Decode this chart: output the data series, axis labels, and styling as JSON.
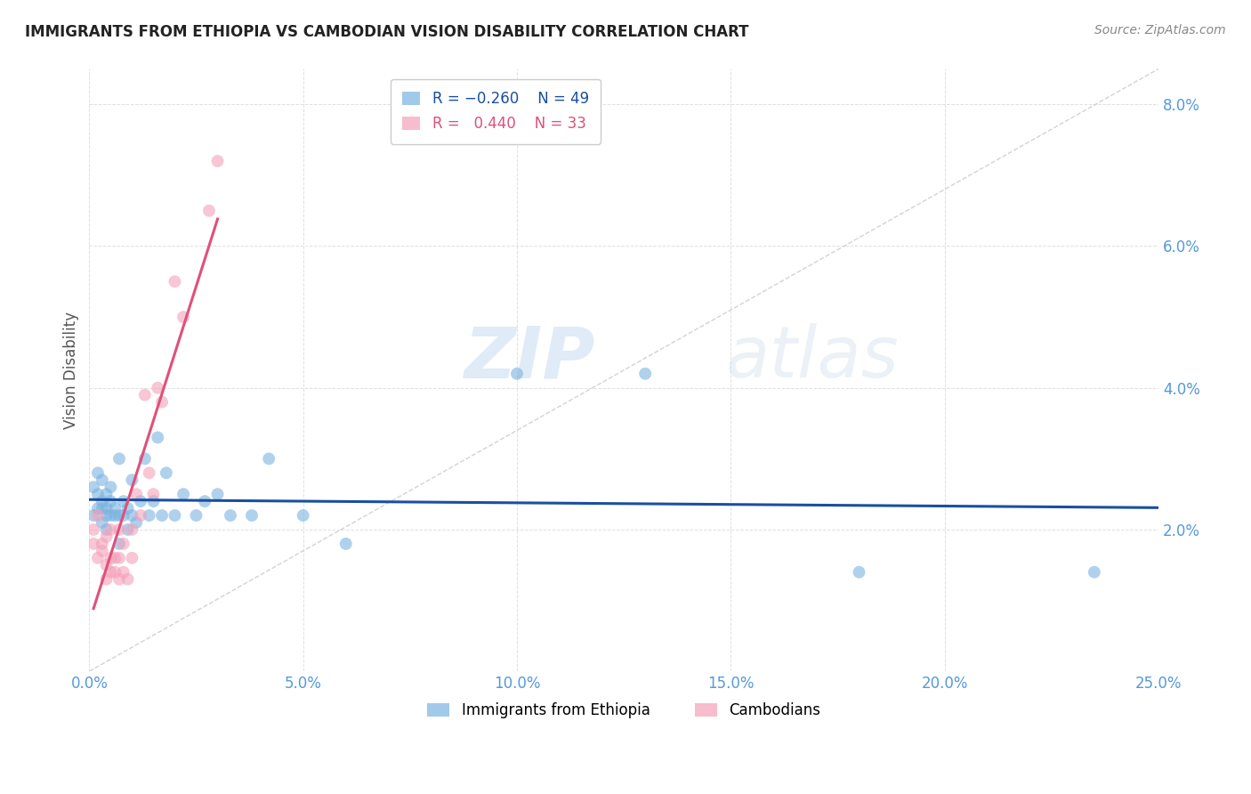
{
  "title": "IMMIGRANTS FROM ETHIOPIA VS CAMBODIAN VISION DISABILITY CORRELATION CHART",
  "source": "Source: ZipAtlas.com",
  "ylabel": "Vision Disability",
  "xlim": [
    0.0,
    0.25
  ],
  "ylim": [
    0.0,
    0.085
  ],
  "yticks": [
    0.02,
    0.04,
    0.06,
    0.08
  ],
  "xticks": [
    0.0,
    0.05,
    0.1,
    0.15,
    0.2,
    0.25
  ],
  "ethiopia_x": [
    0.001,
    0.001,
    0.002,
    0.002,
    0.002,
    0.003,
    0.003,
    0.003,
    0.003,
    0.004,
    0.004,
    0.004,
    0.004,
    0.005,
    0.005,
    0.005,
    0.006,
    0.006,
    0.007,
    0.007,
    0.007,
    0.008,
    0.008,
    0.009,
    0.009,
    0.01,
    0.01,
    0.011,
    0.012,
    0.013,
    0.014,
    0.015,
    0.016,
    0.017,
    0.018,
    0.02,
    0.022,
    0.025,
    0.027,
    0.03,
    0.033,
    0.038,
    0.042,
    0.05,
    0.06,
    0.1,
    0.13,
    0.18,
    0.235
  ],
  "ethiopia_y": [
    0.022,
    0.026,
    0.023,
    0.025,
    0.028,
    0.021,
    0.024,
    0.027,
    0.023,
    0.02,
    0.023,
    0.025,
    0.022,
    0.024,
    0.022,
    0.026,
    0.023,
    0.022,
    0.03,
    0.022,
    0.018,
    0.024,
    0.022,
    0.02,
    0.023,
    0.027,
    0.022,
    0.021,
    0.024,
    0.03,
    0.022,
    0.024,
    0.033,
    0.022,
    0.028,
    0.022,
    0.025,
    0.022,
    0.024,
    0.025,
    0.022,
    0.022,
    0.03,
    0.022,
    0.018,
    0.042,
    0.042,
    0.014,
    0.014
  ],
  "cambodian_x": [
    0.001,
    0.001,
    0.002,
    0.002,
    0.003,
    0.003,
    0.004,
    0.004,
    0.004,
    0.005,
    0.005,
    0.005,
    0.006,
    0.006,
    0.007,
    0.007,
    0.007,
    0.008,
    0.008,
    0.009,
    0.01,
    0.01,
    0.011,
    0.012,
    0.013,
    0.014,
    0.015,
    0.016,
    0.017,
    0.02,
    0.022,
    0.028,
    0.03
  ],
  "cambodian_y": [
    0.02,
    0.018,
    0.022,
    0.016,
    0.017,
    0.018,
    0.015,
    0.013,
    0.019,
    0.016,
    0.014,
    0.02,
    0.016,
    0.014,
    0.013,
    0.016,
    0.02,
    0.014,
    0.018,
    0.013,
    0.016,
    0.02,
    0.025,
    0.022,
    0.039,
    0.028,
    0.025,
    0.04,
    0.038,
    0.055,
    0.05,
    0.065,
    0.072
  ],
  "ethiopia_color": "#7ab3e0",
  "cambodian_color": "#f4a0b8",
  "ethiopia_line_color": "#1a4fa0",
  "cambodian_line_color": "#e0507a",
  "diagonal_color": "#c8c8c8",
  "bg_color": "#ffffff",
  "grid_color": "#e0e0e0",
  "title_color": "#222222",
  "source_color": "#888888",
  "axis_tick_color": "#5599dd",
  "watermark_color": "#cce0f0",
  "legend_r1_color": "#1a4fa0",
  "legend_r2_color": "#e0507a",
  "legend_patch1_color": "#7ab3e0",
  "legend_patch2_color": "#f4a0b8"
}
